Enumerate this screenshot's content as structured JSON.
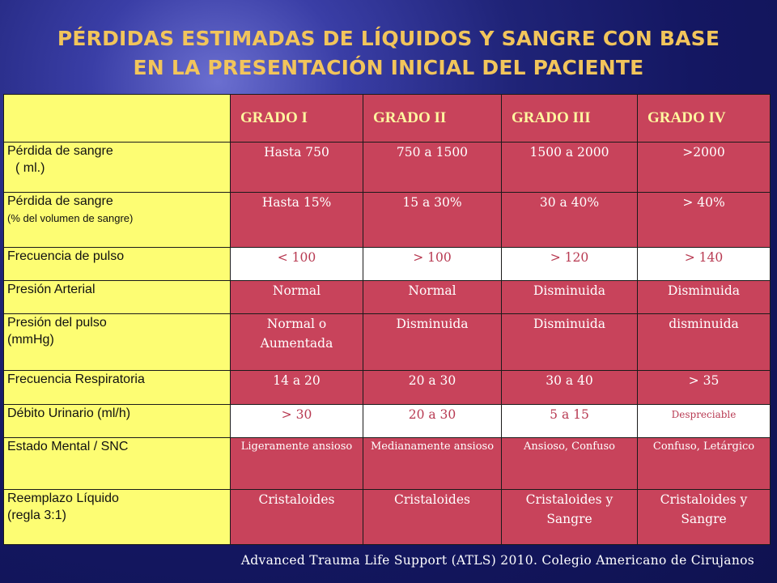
{
  "title": {
    "line1": "PÉRDIDAS ESTIMADAS DE LÍQUIDOS Y SANGRE CON BASE",
    "line2": "EN LA PRESENTACIÓN INICIAL DEL PACIENTE"
  },
  "table": {
    "headers": [
      "GRADO I",
      "GRADO II",
      "GRADO III",
      "GRADO IV"
    ],
    "rows": [
      {
        "label_main": "Pérdida de sangre",
        "label_sub": "( ml.)",
        "cells": [
          "Hasta 750",
          "750 a 1500",
          "1500 a 2000",
          ">2000"
        ]
      },
      {
        "label_main": "Pérdida de sangre",
        "label_sub": "(% del volumen de sangre)",
        "cells": [
          "Hasta 15%",
          "15 a 30%",
          "30 a 40%",
          "> 40%"
        ]
      },
      {
        "label_main": "Frecuencia de pulso",
        "cells": [
          "< 100",
          "> 100",
          "> 120",
          "> 140"
        ]
      },
      {
        "label_main": "Presión Arterial",
        "cells": [
          "Normal",
          "Normal",
          "Disminuida",
          "Disminuida"
        ]
      },
      {
        "label_main": "Presión del pulso",
        "label_sub": "(mmHg)",
        "cells": [
          "Normal o Aumentada",
          "Disminuida",
          "Disminuida",
          "disminuida"
        ]
      },
      {
        "label_main": "Frecuencia Respiratoria",
        "cells": [
          "14 a 20",
          "20 a  30",
          "30 a 40",
          "> 35"
        ]
      },
      {
        "label_main": "Débito Urinario (ml/h)",
        "cells": [
          "> 30",
          "20 a 30",
          "5 a 15",
          "Despreciable"
        ]
      },
      {
        "label_main": "Estado Mental / SNC",
        "cells": [
          "Ligeramente ansioso",
          "Medianamente ansioso",
          "Ansioso, Confuso",
          "Confuso, Letárgico"
        ]
      },
      {
        "label_main": "Reemplazo Líquido",
        "label_sub": "(regla  3:1)",
        "cells": [
          "Cristaloides",
          "Cristaloides",
          "Cristaloides y  Sangre",
          "Cristaloides y  Sangre"
        ]
      }
    ]
  },
  "footer": "Advanced Trauma Life Support  (ATLS) 2010. Colegio Americano de Cirujanos",
  "colors": {
    "title": "#f2c55b",
    "label_cell": "#fdfd73",
    "grade_cell": "#c8435b",
    "background": "#1f2377"
  }
}
